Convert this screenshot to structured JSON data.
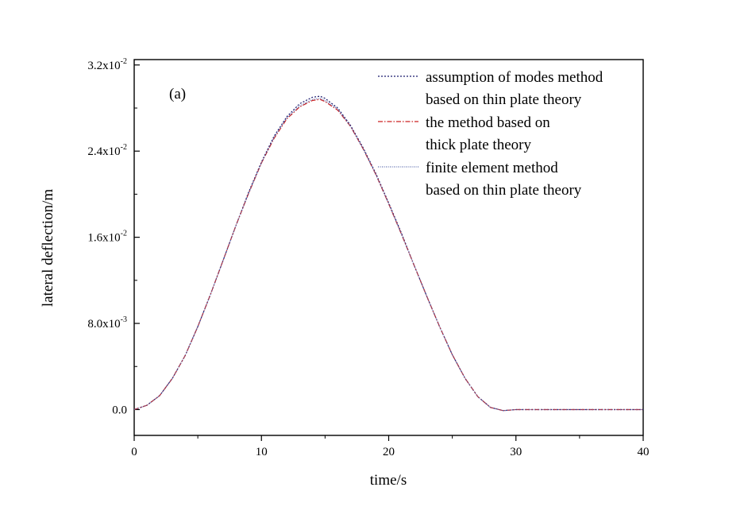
{
  "chart_data": {
    "type": "line",
    "panel_label": "(a)",
    "xlabel": "time/s",
    "ylabel": "lateral deflection/m",
    "xlim": [
      0,
      40
    ],
    "ylim": [
      -0.0024,
      0.0325
    ],
    "x_ticks": [
      {
        "value": 0,
        "label": "0"
      },
      {
        "value": 10,
        "label": "10"
      },
      {
        "value": 20,
        "label": "20"
      },
      {
        "value": 30,
        "label": "30"
      },
      {
        "value": 40,
        "label": "40"
      }
    ],
    "y_ticks": [
      {
        "value": 0,
        "mantissa": "0.0",
        "exp": ""
      },
      {
        "value": 0.008,
        "mantissa": "8.0x10",
        "exp": "-3"
      },
      {
        "value": 0.016,
        "mantissa": "1.6x10",
        "exp": "-2"
      },
      {
        "value": 0.024,
        "mantissa": "2.4x10",
        "exp": "-2"
      },
      {
        "value": 0.032,
        "mantissa": "3.2x10",
        "exp": "-2"
      }
    ],
    "legend_position": "top-right",
    "series": [
      {
        "legend_lines": [
          "assumption of modes method",
          "based on thin plate theory"
        ],
        "color": "#1a1a6e",
        "dash": "2,2",
        "x": [
          0,
          1,
          2,
          3,
          4,
          5,
          6,
          7,
          8,
          9,
          10,
          11,
          12,
          13,
          14,
          14.6,
          15,
          16,
          17,
          18,
          19,
          20,
          21,
          22,
          23,
          24,
          25,
          26,
          27,
          28,
          29,
          30,
          31,
          32,
          33,
          34,
          35,
          36,
          37,
          38,
          39,
          40
        ],
        "y": [
          0,
          0.0004,
          0.0013,
          0.0029,
          0.005,
          0.0077,
          0.0107,
          0.0139,
          0.0171,
          0.0202,
          0.023,
          0.0254,
          0.0272,
          0.0284,
          0.029,
          0.0291,
          0.0289,
          0.028,
          0.0264,
          0.0243,
          0.0219,
          0.0192,
          0.0164,
          0.0134,
          0.0105,
          0.0077,
          0.0051,
          0.0029,
          0.0012,
          0.0002,
          -0.0001,
          0,
          0,
          0,
          0,
          0,
          0,
          0,
          0,
          0,
          0,
          0
        ]
      },
      {
        "legend_lines": [
          "the method based on",
          "thick plate theory"
        ],
        "color": "#cc2020",
        "dash": "6,2,1.5,2",
        "x": [
          0,
          1,
          2,
          3,
          4,
          5,
          6,
          7,
          8,
          9,
          10,
          11,
          12,
          13,
          14,
          14.6,
          15,
          16,
          17,
          18,
          19,
          20,
          21,
          22,
          23,
          24,
          25,
          26,
          27,
          28,
          29,
          30,
          31,
          32,
          33,
          34,
          35,
          36,
          37,
          38,
          39,
          40
        ],
        "y": [
          0,
          0.0004,
          0.0013,
          0.0029,
          0.005,
          0.0077,
          0.0107,
          0.0139,
          0.0171,
          0.0201,
          0.0229,
          0.0252,
          0.027,
          0.0281,
          0.0287,
          0.0288,
          0.0286,
          0.0278,
          0.0263,
          0.0242,
          0.0218,
          0.0191,
          0.0163,
          0.0134,
          0.0105,
          0.0077,
          0.0051,
          0.0029,
          0.0012,
          0.0002,
          -0.0001,
          0,
          0,
          0,
          0,
          0,
          0,
          0,
          0,
          0,
          0,
          0
        ]
      },
      {
        "legend_lines": [
          "finite element method",
          "based on thin plate theory"
        ],
        "color": "#5566aa",
        "dash": "1,1.5",
        "x": [
          0,
          1,
          2,
          3,
          4,
          5,
          6,
          7,
          8,
          9,
          10,
          11,
          12,
          13,
          14,
          14.6,
          15,
          16,
          17,
          18,
          19,
          20,
          21,
          22,
          23,
          24,
          25,
          26,
          27,
          28,
          29,
          30,
          31,
          32,
          33,
          34,
          35,
          36,
          37,
          38,
          39,
          40
        ],
        "y": [
          0,
          0.0004,
          0.0013,
          0.0029,
          0.005,
          0.0077,
          0.0107,
          0.0139,
          0.0171,
          0.0201,
          0.0229,
          0.0253,
          0.0271,
          0.0282,
          0.0288,
          0.0289,
          0.0287,
          0.0279,
          0.0263,
          0.0242,
          0.0218,
          0.0191,
          0.0163,
          0.0134,
          0.0105,
          0.0077,
          0.0051,
          0.0029,
          0.0012,
          0.0002,
          -0.0001,
          0,
          0,
          0,
          0,
          0,
          0,
          0,
          0,
          0,
          0,
          0
        ]
      }
    ]
  }
}
